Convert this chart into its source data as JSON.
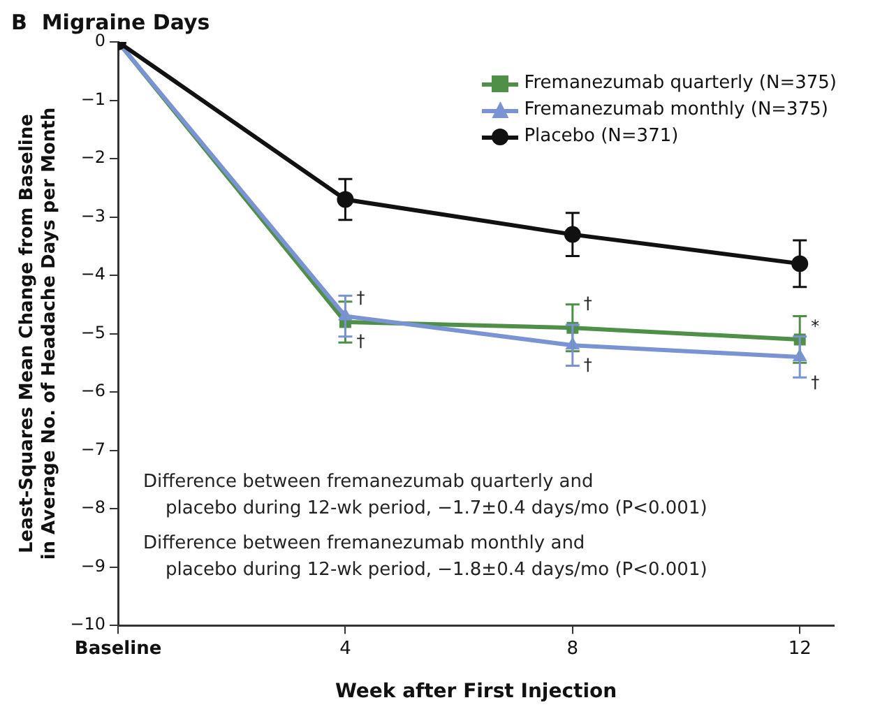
{
  "chart_data": {
    "type": "line",
    "title": "B  Migraine Days",
    "xlabel": "Week after First Injection",
    "ylabel": "Least-Squares Mean Change from Baseline\nin Average No. of Headache Days per Month",
    "x": [
      0,
      4,
      8,
      12
    ],
    "series": [
      {
        "name": "Fremanezumab quarterly (N=375)",
        "color": "#4f8f48",
        "marker": "square",
        "values": [
          0,
          -4.8,
          -4.9,
          -5.1
        ],
        "errors": [
          null,
          0.35,
          0.4,
          0.4
        ]
      },
      {
        "name": "Fremanezumab monthly (N=375)",
        "color": "#7a93d3",
        "marker": "triangle",
        "values": [
          0,
          -4.7,
          -5.2,
          -5.4
        ],
        "errors": [
          null,
          0.35,
          0.35,
          0.35
        ]
      },
      {
        "name": "Placebo (N=371)",
        "color": "#111111",
        "marker": "circle",
        "values": [
          0,
          -2.7,
          -3.3,
          -3.8
        ],
        "errors": [
          null,
          0.35,
          0.37,
          0.4
        ]
      }
    ],
    "xlim": [
      0,
      12.6
    ],
    "xticks": [
      {
        "value": 0,
        "label": "Baseline"
      },
      4,
      8,
      12
    ],
    "ylim": [
      -10,
      0
    ],
    "yticks": [
      -10,
      -9,
      -8,
      -7,
      -6,
      -5,
      -4,
      -3,
      -2,
      -1,
      0
    ],
    "grid": false,
    "legend": "top right",
    "line_style": "solid",
    "annotations": [
      {
        "text": "†",
        "x": 4,
        "y": -4.4
      },
      {
        "text": "†",
        "x": 4,
        "y": -5.15
      },
      {
        "text": "†",
        "x": 8,
        "y": -4.5
      },
      {
        "text": "†",
        "x": 8,
        "y": -5.55
      },
      {
        "text": "*",
        "x": 12,
        "y": -4.9
      },
      {
        "text": "†",
        "x": 12,
        "y": -5.85
      },
      "Difference between fremanezumab quarterly and\nplacebo during 12-wk period, −1.7±0.4 days/mo (P<0.001)",
      "Difference between fremanezumab monthly and\nplacebo during 12-wk period, −1.8±0.4 days/mo (P<0.001)"
    ]
  }
}
